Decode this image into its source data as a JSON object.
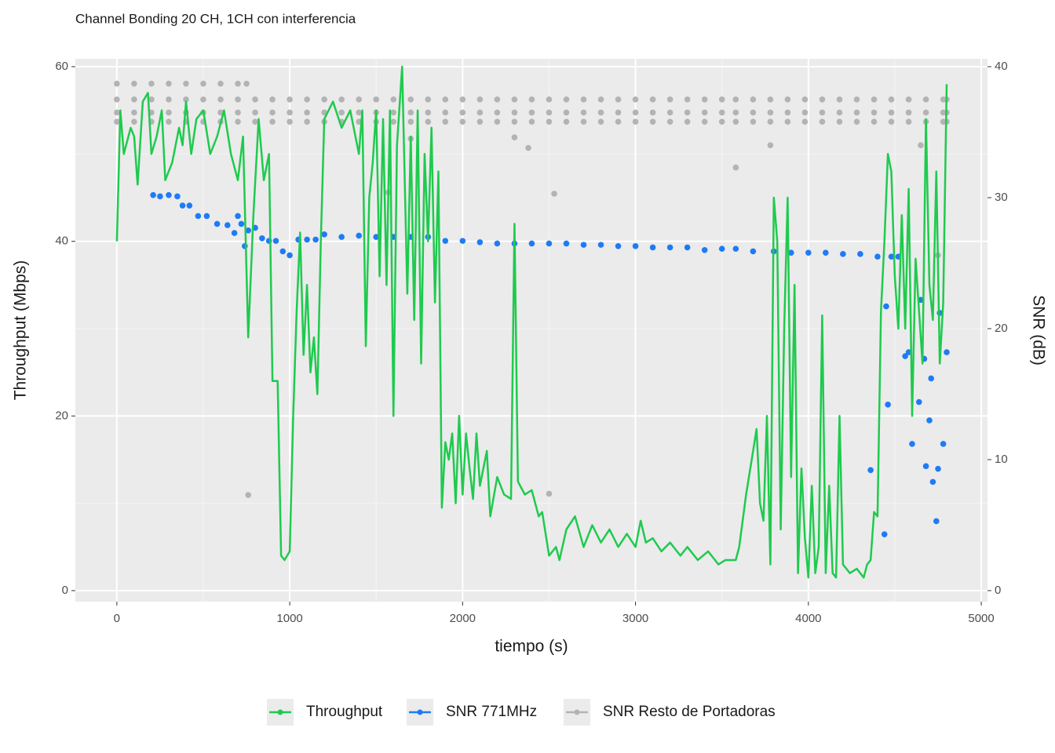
{
  "chart_data": {
    "type": "line",
    "title": "Channel Bonding 20 CH, 1CH con interferencia",
    "x_label": "tiempo (s)",
    "y_label": "Throughput (Mbps)",
    "y2_label": "SNR (dB)",
    "xlim": [
      -240,
      5036
    ],
    "xticks": [
      0,
      1000,
      2000,
      3000,
      4000,
      5000
    ],
    "ylim": [
      -1.26,
      60.9
    ],
    "yticks": [
      0,
      20,
      40,
      60
    ],
    "y2lim": [
      -0.84,
      40.6
    ],
    "y2ticks": [
      0,
      10,
      20,
      30,
      40
    ],
    "grid": true,
    "legend": "bottom",
    "series": [
      {
        "name": "Throughput",
        "color": "#1fca4e",
        "axis": "y",
        "mark": "line",
        "x": [
          0,
          20,
          40,
          80,
          100,
          120,
          150,
          180,
          200,
          230,
          260,
          280,
          320,
          360,
          380,
          400,
          430,
          460,
          500,
          540,
          580,
          620,
          660,
          700,
          730,
          760,
          790,
          820,
          850,
          880,
          900,
          930,
          950,
          970,
          1000,
          1020,
          1040,
          1060,
          1080,
          1100,
          1120,
          1140,
          1160,
          1180,
          1200,
          1250,
          1300,
          1350,
          1400,
          1420,
          1440,
          1460,
          1480,
          1500,
          1520,
          1540,
          1560,
          1580,
          1600,
          1620,
          1650,
          1680,
          1700,
          1720,
          1740,
          1760,
          1780,
          1800,
          1820,
          1840,
          1860,
          1880,
          1900,
          1920,
          1940,
          1960,
          1980,
          2000,
          2020,
          2040,
          2060,
          2080,
          2100,
          2140,
          2160,
          2200,
          2240,
          2280,
          2300,
          2320,
          2360,
          2400,
          2440,
          2460,
          2480,
          2500,
          2540,
          2560,
          2600,
          2650,
          2700,
          2750,
          2800,
          2850,
          2900,
          2950,
          3000,
          3030,
          3060,
          3100,
          3150,
          3200,
          3260,
          3300,
          3360,
          3420,
          3480,
          3520,
          3580,
          3600,
          3640,
          3680,
          3700,
          3720,
          3740,
          3760,
          3780,
          3800,
          3820,
          3840,
          3860,
          3880,
          3900,
          3920,
          3940,
          3960,
          3980,
          4000,
          4020,
          4040,
          4060,
          4080,
          4100,
          4120,
          4140,
          4160,
          4180,
          4200,
          4240,
          4280,
          4320,
          4340,
          4360,
          4380,
          4400,
          4420,
          4440,
          4460,
          4480,
          4500,
          4520,
          4540,
          4560,
          4580,
          4600,
          4620,
          4640,
          4660,
          4680,
          4700,
          4720,
          4740,
          4760,
          4780,
          4800
        ],
        "values": [
          40,
          55,
          50,
          53,
          52,
          46.5,
          56,
          57,
          50,
          52,
          55,
          47,
          49,
          53,
          51,
          56,
          50,
          54,
          55,
          50,
          52,
          55,
          50,
          47,
          52,
          29,
          43,
          54,
          47,
          50,
          24,
          24,
          4,
          3.5,
          4.5,
          20,
          32,
          41,
          27,
          35,
          25,
          29,
          22.5,
          40,
          54,
          56,
          53,
          55,
          50,
          55,
          28,
          45,
          49,
          55,
          36,
          54,
          35,
          55,
          20,
          51,
          60,
          34,
          52,
          31,
          55,
          26,
          50,
          40,
          53,
          33,
          48,
          9.5,
          17,
          15,
          18,
          10,
          20,
          11,
          18,
          14,
          10.5,
          18,
          12,
          16,
          8.5,
          13,
          11,
          10.5,
          42,
          12.5,
          11,
          11.5,
          8.5,
          9,
          6.5,
          4,
          5,
          3.5,
          7,
          8.5,
          5,
          7.5,
          5.5,
          7,
          5,
          6.5,
          5,
          8,
          5.5,
          6,
          4.5,
          5.5,
          4,
          5,
          3.5,
          4.5,
          3,
          3.5,
          3.5,
          5,
          11,
          16,
          18.5,
          10,
          8,
          20,
          3,
          45,
          40,
          7,
          30,
          45,
          13,
          35,
          2,
          14,
          6,
          1.5,
          12,
          2,
          5,
          31.5,
          2,
          12,
          2,
          1.5,
          20,
          3,
          2,
          2.5,
          1.5,
          3,
          3.5,
          9,
          8.5,
          32,
          40,
          50,
          48,
          36,
          30,
          43,
          30,
          46,
          20,
          38,
          32,
          26,
          54,
          35,
          31,
          48,
          26,
          33,
          58
        ]
      },
      {
        "name": "SNR 771MHz",
        "color": "#1f7bf5",
        "axis": "y2",
        "mark": "point",
        "x": [
          210,
          250,
          300,
          350,
          380,
          420,
          470,
          520,
          580,
          640,
          680,
          700,
          720,
          740,
          760,
          800,
          840,
          880,
          920,
          960,
          1000,
          1050,
          1100,
          1150,
          1200,
          1300,
          1400,
          1500,
          1600,
          1700,
          1800,
          1900,
          2000,
          2100,
          2200,
          2300,
          2400,
          2500,
          2600,
          2700,
          2800,
          2900,
          3000,
          3100,
          3200,
          3300,
          3400,
          3500,
          3580,
          3680,
          3800,
          3900,
          4000,
          4100,
          4200,
          4300,
          4360,
          4400,
          4440,
          4450,
          4460,
          4480,
          4520,
          4560,
          4580,
          4600,
          4640,
          4650,
          4670,
          4680,
          4700,
          4710,
          4720,
          4740,
          4750,
          4760,
          4780,
          4800
        ],
        "values": [
          30.2,
          30.1,
          30.2,
          30.1,
          29.4,
          29.4,
          28.6,
          28.6,
          28.0,
          27.9,
          27.3,
          28.6,
          28.0,
          26.3,
          27.5,
          27.7,
          26.9,
          26.7,
          26.7,
          25.9,
          25.6,
          26.8,
          26.8,
          26.8,
          27.2,
          27.0,
          27.1,
          27.0,
          27.0,
          27.0,
          27.0,
          26.7,
          26.7,
          26.6,
          26.5,
          26.5,
          26.5,
          26.5,
          26.5,
          26.4,
          26.4,
          26.3,
          26.3,
          26.2,
          26.2,
          26.2,
          26.0,
          26.1,
          26.1,
          25.9,
          25.9,
          25.8,
          25.8,
          25.8,
          25.7,
          25.7,
          9.2,
          25.5,
          4.3,
          21.7,
          14.2,
          25.5,
          25.5,
          17.9,
          18.2,
          11.2,
          14.4,
          22.2,
          17.7,
          9.5,
          13.0,
          16.2,
          8.3,
          5.3,
          9.3,
          21.2,
          11.2,
          18.2
        ]
      },
      {
        "name": "SNR Resto de Portadoras",
        "color": "#b3b3b3",
        "axis": "y2",
        "mark": "point",
        "x": [
          0,
          100,
          200,
          300,
          400,
          500,
          600,
          700,
          800,
          900,
          1000,
          1100,
          1200,
          1300,
          1400,
          1500,
          1600,
          1700,
          1800,
          1900,
          2000,
          2100,
          2200,
          2300,
          2400,
          2500,
          2600,
          2700,
          2800,
          2900,
          3000,
          3100,
          3200,
          3300,
          3400,
          3500,
          3580,
          3680,
          3780,
          3880,
          3980,
          4080,
          4180,
          4280,
          4380,
          4480,
          4580,
          4680,
          4780,
          4800,
          0,
          100,
          200,
          300,
          400,
          500,
          600,
          700,
          800,
          900,
          1000,
          1100,
          1200,
          1300,
          1400,
          1500,
          1600,
          1700,
          1800,
          1900,
          2000,
          2100,
          2200,
          2300,
          2400,
          2500,
          2600,
          2700,
          2800,
          2900,
          3000,
          3100,
          3200,
          3300,
          3400,
          3500,
          3580,
          3680,
          3780,
          3880,
          3980,
          4080,
          4180,
          4280,
          4380,
          4480,
          4580,
          4680,
          4780,
          4800,
          0,
          100,
          200,
          300,
          400,
          500,
          600,
          700,
          800,
          900,
          1000,
          1100,
          1200,
          1300,
          1400,
          1500,
          1600,
          1700,
          1800,
          1900,
          2000,
          2100,
          2200,
          2300,
          2400,
          2500,
          2600,
          2700,
          2800,
          2900,
          3000,
          3100,
          3200,
          3300,
          3400,
          3500,
          3580,
          3680,
          3780,
          3880,
          3980,
          4080,
          4180,
          4280,
          4380,
          4480,
          4580,
          4680,
          4780,
          4800,
          0,
          100,
          200,
          300,
          400,
          500,
          600,
          700,
          750,
          760,
          1570,
          1700,
          2300,
          2380,
          2530,
          2500,
          3580,
          3780,
          4750,
          4650
        ],
        "values": [
          37.5,
          37.5,
          37.5,
          37.5,
          37.5,
          37.5,
          37.5,
          37.5,
          37.5,
          37.5,
          37.5,
          37.5,
          37.5,
          37.5,
          37.5,
          37.5,
          37.5,
          37.5,
          37.5,
          37.5,
          37.5,
          37.5,
          37.5,
          37.5,
          37.5,
          37.5,
          37.5,
          37.5,
          37.5,
          37.5,
          37.5,
          37.5,
          37.5,
          37.5,
          37.5,
          37.5,
          37.5,
          37.5,
          37.5,
          37.5,
          37.5,
          37.5,
          37.5,
          37.5,
          37.5,
          37.5,
          37.5,
          37.5,
          37.5,
          37.5,
          36.5,
          36.5,
          36.5,
          36.5,
          36.5,
          36.5,
          36.5,
          36.5,
          36.5,
          36.5,
          36.5,
          36.5,
          36.5,
          36.5,
          36.5,
          36.5,
          36.5,
          36.5,
          36.5,
          36.5,
          36.5,
          36.5,
          36.5,
          36.5,
          36.5,
          36.5,
          36.5,
          36.5,
          36.5,
          36.5,
          36.5,
          36.5,
          36.5,
          36.5,
          36.5,
          36.5,
          36.5,
          36.5,
          36.5,
          36.5,
          36.5,
          36.5,
          36.5,
          36.5,
          36.5,
          36.5,
          36.5,
          36.5,
          36.5,
          36.5,
          35.8,
          35.8,
          35.8,
          35.8,
          35.8,
          35.8,
          35.8,
          35.8,
          35.8,
          35.8,
          35.8,
          35.8,
          35.8,
          35.8,
          35.8,
          35.8,
          35.8,
          35.8,
          35.8,
          35.8,
          35.8,
          35.8,
          35.8,
          35.8,
          35.8,
          35.8,
          35.8,
          35.8,
          35.8,
          35.8,
          35.8,
          35.8,
          35.8,
          35.8,
          35.8,
          35.8,
          35.8,
          35.8,
          35.8,
          35.8,
          35.8,
          35.8,
          35.8,
          35.8,
          35.8,
          35.8,
          35.8,
          35.8,
          35.8,
          35.8,
          38.7,
          38.7,
          38.7,
          38.7,
          38.7,
          38.7,
          38.7,
          38.7,
          38.7,
          7.3,
          30.4,
          34.5,
          34.6,
          33.8,
          30.3,
          7.4,
          32.3,
          34.0,
          25.6,
          34.0
        ]
      }
    ]
  }
}
